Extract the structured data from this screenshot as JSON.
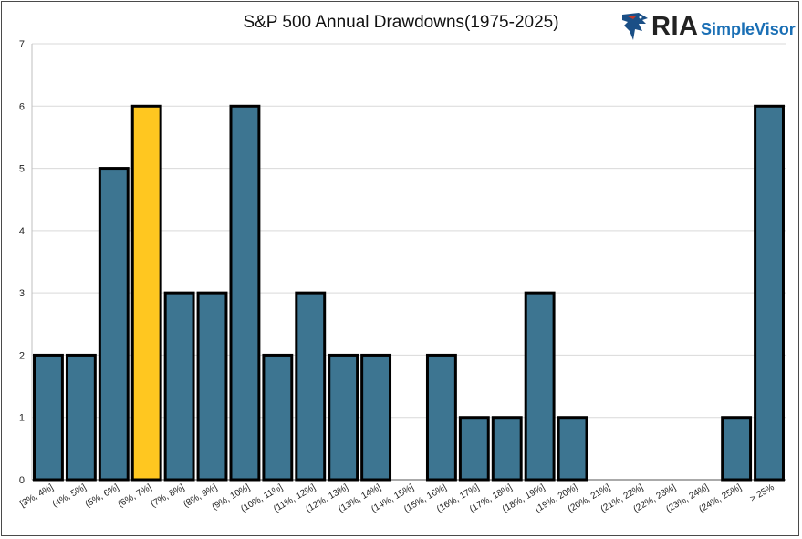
{
  "chart_data": {
    "type": "bar",
    "title": "S&P 500 Annual Drawdowns(1975-2025)",
    "xlabel": "",
    "ylabel": "",
    "ylim": [
      0,
      7
    ],
    "yticks": [
      0,
      1,
      2,
      3,
      4,
      5,
      6,
      7
    ],
    "grid": true,
    "categories": [
      "[3%, 4%]",
      "(4%, 5%]",
      "(5%, 6%]",
      "(6%, 7%]",
      "(7%, 8%]",
      "(8%, 9%]",
      "(9%, 10%]",
      "(10%, 11%]",
      "(11%, 12%]",
      "(12%, 13%]",
      "(13%, 14%]",
      "(14%, 15%]",
      "(15%, 16%]",
      "(16%, 17%]",
      "(17%, 18%]",
      "(18%, 19%]",
      "(19%, 20%]",
      "(20%, 21%]",
      "(21%, 22%]",
      "(22%, 23%]",
      "(23%, 24%]",
      "(24%, 25%]",
      "> 25%"
    ],
    "values": [
      2,
      2,
      5,
      6,
      3,
      3,
      6,
      2,
      3,
      2,
      2,
      0,
      2,
      1,
      1,
      3,
      1,
      0,
      0,
      0,
      0,
      1,
      6
    ],
    "highlight_index": 3,
    "colors": {
      "bar": "#3d7591",
      "highlight": "#ffc720",
      "outline": "#000000",
      "grid": "#d9d9d9"
    }
  },
  "logo": {
    "brand": "RIA",
    "product": "SimpleVisor",
    "icon": "eagle-icon"
  }
}
